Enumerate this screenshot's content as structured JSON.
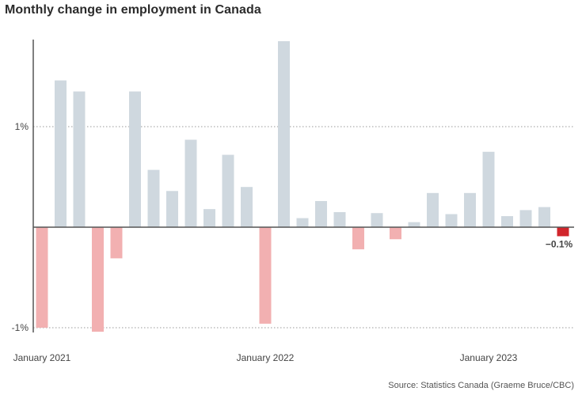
{
  "chart_data": {
    "type": "bar",
    "title": "Monthly change in employment in Canada",
    "source": "Source: Statistics Canada (Graeme Bruce/CBC)",
    "y_unit": "%",
    "ylim": [
      -1.05,
      1.85
    ],
    "y_ticks": [
      {
        "value": 1,
        "label": "1%"
      },
      {
        "value": -1,
        "label": "-1%"
      }
    ],
    "x_labels": [
      {
        "index": 0,
        "label": "January 2021"
      },
      {
        "index": 12,
        "label": "January 2022"
      },
      {
        "index": 24,
        "label": "January 2023"
      }
    ],
    "categories": [
      "2021-01",
      "2021-02",
      "2021-03",
      "2021-04",
      "2021-05",
      "2021-06",
      "2021-07",
      "2021-08",
      "2021-09",
      "2021-10",
      "2021-11",
      "2021-12",
      "2022-01",
      "2022-02",
      "2022-03",
      "2022-04",
      "2022-05",
      "2022-06",
      "2022-07",
      "2022-08",
      "2022-09",
      "2022-10",
      "2022-11",
      "2022-12",
      "2023-01",
      "2023-02",
      "2023-03",
      "2023-04",
      "2023-05"
    ],
    "values": [
      -1.0,
      1.46,
      1.35,
      -1.04,
      -0.31,
      1.35,
      0.57,
      0.36,
      0.87,
      0.18,
      0.72,
      0.4,
      -0.96,
      1.85,
      0.09,
      0.26,
      0.15,
      -0.22,
      0.14,
      -0.12,
      0.05,
      0.34,
      0.13,
      0.34,
      0.75,
      0.11,
      0.17,
      0.2,
      -0.09
    ],
    "highlight": {
      "index": 28,
      "label": "−0.1%"
    },
    "colors": {
      "positive": "#cfd8df",
      "negative": "#f2b0b1",
      "highlight": "#d1262c",
      "axis": "#555555",
      "grid": "#999999"
    }
  }
}
